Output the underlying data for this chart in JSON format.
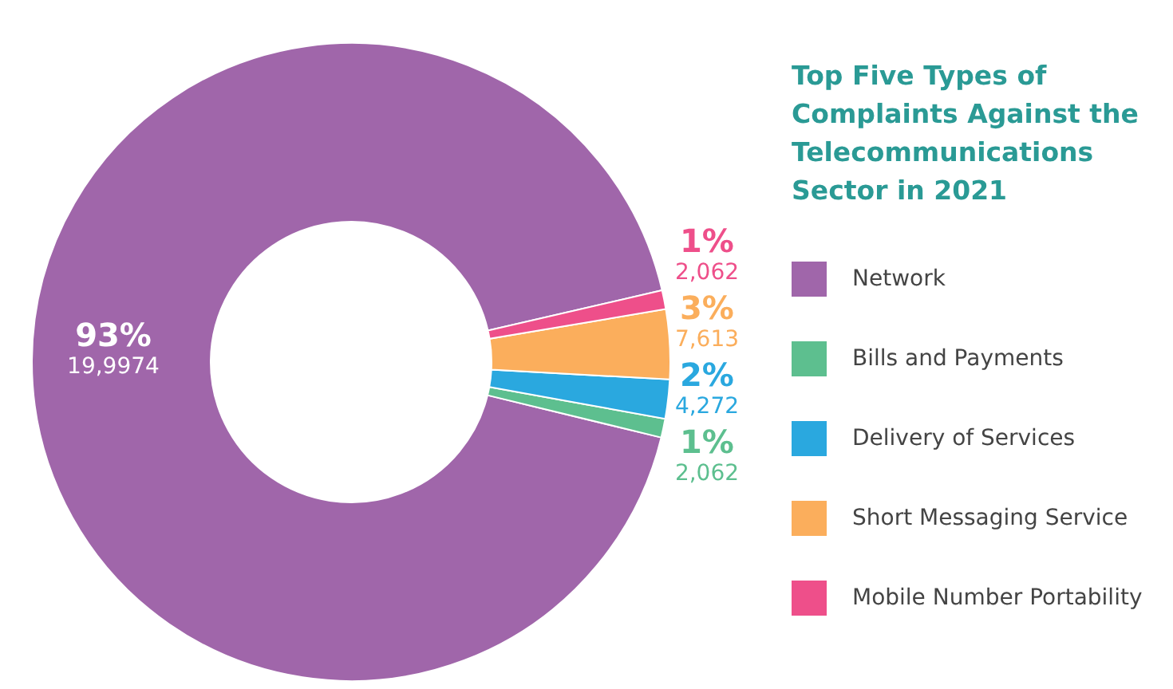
{
  "chart_data": {
    "type": "donut",
    "title": "Top Five Types of Complaints Against the Telecommunications Sector in 2021",
    "categories": [
      "Network",
      "Bills and Payments",
      "Delivery of Services",
      "Short Messaging Service",
      "Mobile Number Portability"
    ],
    "values": [
      199974,
      2062,
      4272,
      7613,
      2062
    ],
    "colors": [
      "#a066aa",
      "#5dbf8f",
      "#2aa8df",
      "#fbae5c",
      "#ee4f8a"
    ],
    "value_labels": [
      "93%\n19,9974",
      "1%\n2,062",
      "2%\n4,272",
      "3%\n7,613",
      "1%\n2,062"
    ],
    "legend": "right"
  }
}
